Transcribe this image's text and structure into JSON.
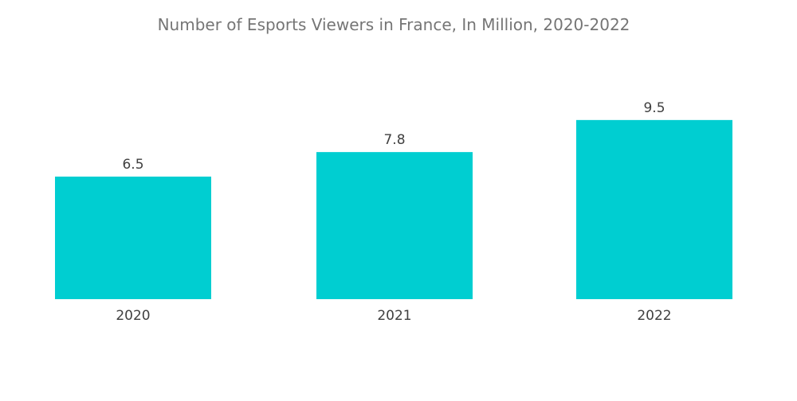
{
  "chart_data": {
    "type": "bar",
    "title": "Number of Esports Viewers in France, In Million, 2020-2022",
    "categories": [
      "2020",
      "2021",
      "2022"
    ],
    "values": [
      6.5,
      7.8,
      9.5
    ],
    "data_labels": [
      "6.5",
      "7.8",
      "9.5"
    ],
    "xlabel": "",
    "ylabel": "",
    "ylim": [
      0,
      10.5
    ],
    "grid": false,
    "legend": "none",
    "colors": {
      "bar": "#00CED1"
    }
  }
}
